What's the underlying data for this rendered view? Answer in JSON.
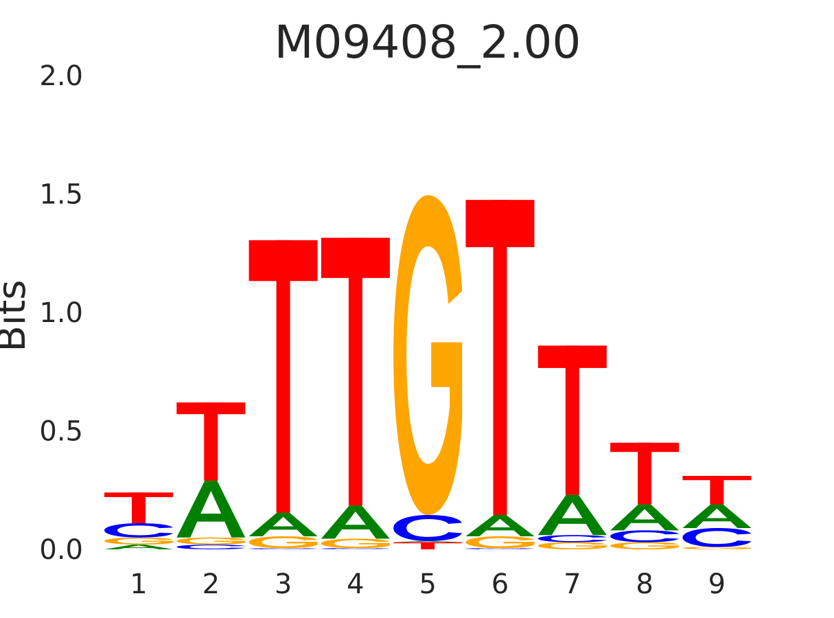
{
  "chart_data": {
    "type": "sequence-logo",
    "title": "M09408_2.00",
    "xlabel": "",
    "ylabel": "Bits",
    "ylim": [
      0,
      2
    ],
    "yticks": [
      "0.0",
      "0.5",
      "1.0",
      "1.5",
      "2.0"
    ],
    "categories": [
      "1",
      "2",
      "3",
      "4",
      "5",
      "6",
      "7",
      "8",
      "9"
    ],
    "grid": false,
    "colors": {
      "A": "#008000",
      "C": "#0000ff",
      "G": "#ffa500",
      "T": "#ff0000"
    },
    "positions": [
      {
        "position": "1",
        "stack": [
          {
            "base": "A",
            "bits": 0.02
          },
          {
            "base": "G",
            "bits": 0.03
          },
          {
            "base": "C",
            "bits": 0.06
          },
          {
            "base": "T",
            "bits": 0.13
          }
        ]
      },
      {
        "position": "2",
        "stack": [
          {
            "base": "C",
            "bits": 0.02
          },
          {
            "base": "G",
            "bits": 0.03
          },
          {
            "base": "A",
            "bits": 0.24
          },
          {
            "base": "T",
            "bits": 0.33
          }
        ]
      },
      {
        "position": "3",
        "stack": [
          {
            "base": "C",
            "bits": 0.005
          },
          {
            "base": "G",
            "bits": 0.05
          },
          {
            "base": "A",
            "bits": 0.1
          },
          {
            "base": "T",
            "bits": 1.15
          }
        ]
      },
      {
        "position": "4",
        "stack": [
          {
            "base": "C",
            "bits": 0.005
          },
          {
            "base": "G",
            "bits": 0.04
          },
          {
            "base": "A",
            "bits": 0.14
          },
          {
            "base": "T",
            "bits": 1.13
          }
        ]
      },
      {
        "position": "5",
        "stack": [
          {
            "base": "T",
            "bits": 0.03
          },
          {
            "base": "A",
            "bits": 0.005
          },
          {
            "base": "C",
            "bits": 0.11
          },
          {
            "base": "G",
            "bits": 1.35
          }
        ]
      },
      {
        "position": "6",
        "stack": [
          {
            "base": "C",
            "bits": 0.005
          },
          {
            "base": "G",
            "bits": 0.05
          },
          {
            "base": "A",
            "bits": 0.09
          },
          {
            "base": "T",
            "bits": 1.33
          }
        ]
      },
      {
        "position": "7",
        "stack": [
          {
            "base": "G",
            "bits": 0.03
          },
          {
            "base": "C",
            "bits": 0.03
          },
          {
            "base": "A",
            "bits": 0.17
          },
          {
            "base": "T",
            "bits": 0.63
          }
        ]
      },
      {
        "position": "8",
        "stack": [
          {
            "base": "G",
            "bits": 0.03
          },
          {
            "base": "C",
            "bits": 0.05
          },
          {
            "base": "A",
            "bits": 0.11
          },
          {
            "base": "T",
            "bits": 0.26
          }
        ]
      },
      {
        "position": "9",
        "stack": [
          {
            "base": "G",
            "bits": 0.01
          },
          {
            "base": "C",
            "bits": 0.08
          },
          {
            "base": "A",
            "bits": 0.1
          },
          {
            "base": "T",
            "bits": 0.12
          }
        ]
      }
    ]
  }
}
